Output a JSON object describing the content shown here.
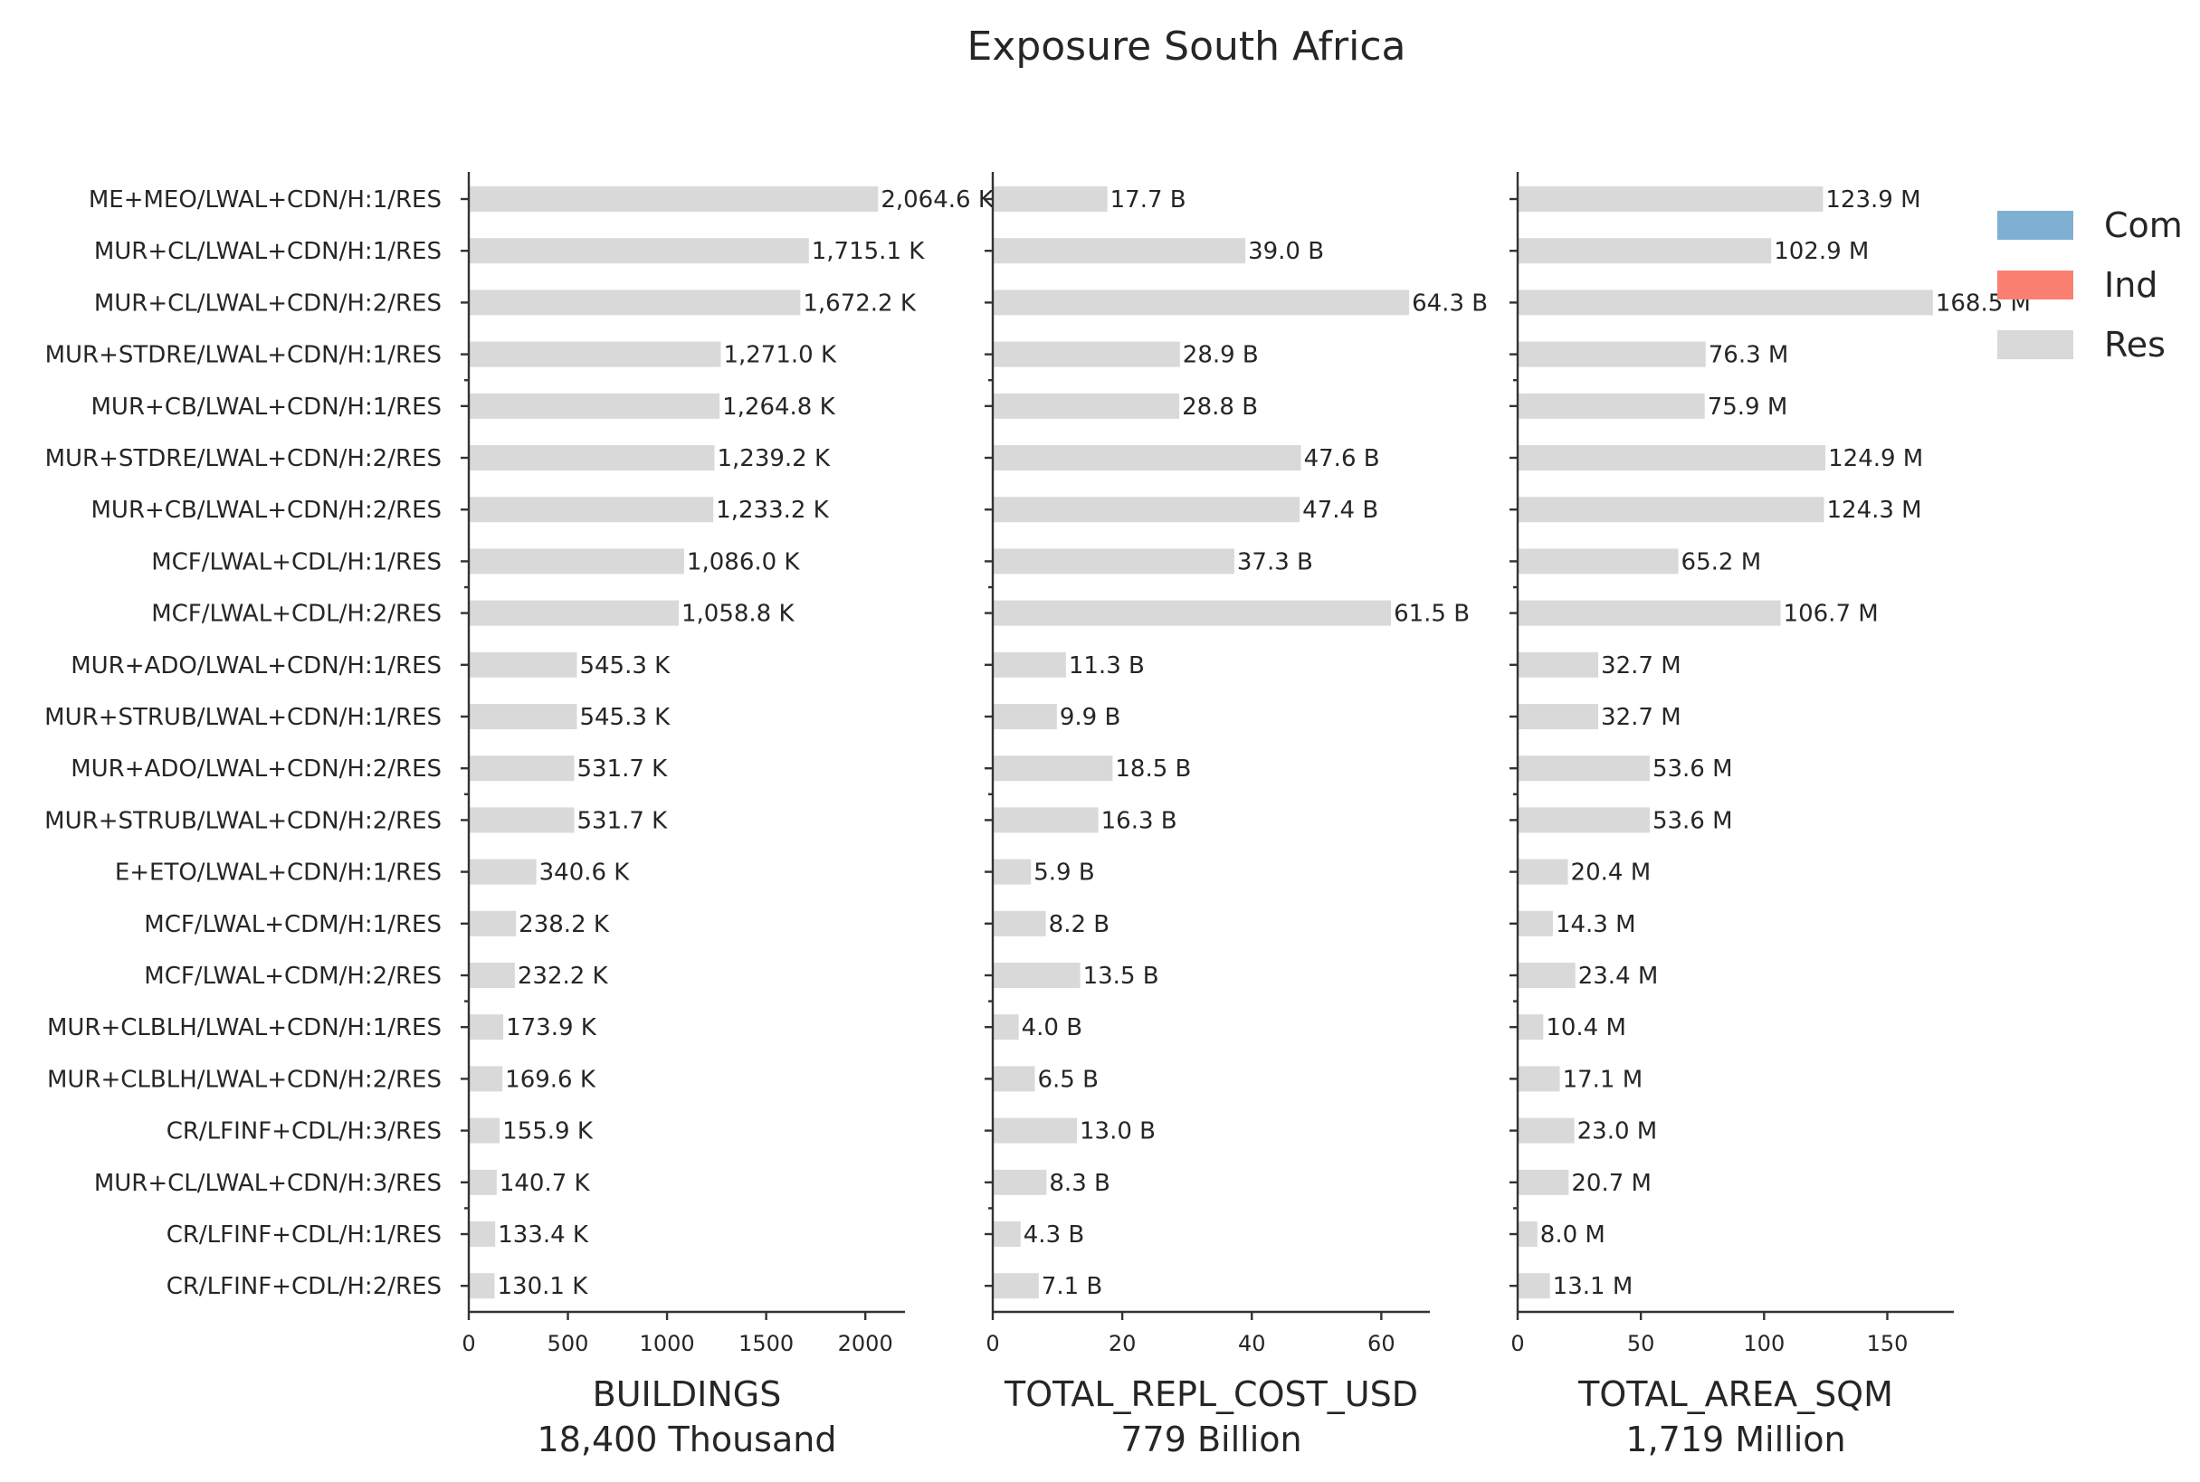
{
  "chart_data": {
    "type": "bar",
    "orientation": "horizontal",
    "title": "Exposure South Africa",
    "legend": {
      "placement": "top-right",
      "entries": [
        {
          "name": "Com",
          "color": "#7fb0d3"
        },
        {
          "name": "Ind",
          "color": "#fb8072"
        },
        {
          "name": "Res",
          "color": "#d9d9d9"
        }
      ]
    },
    "bar_color": "#d9d9d9",
    "categories": [
      "ME+MEO/LWAL+CDN/H:1/RES",
      "MUR+CL/LWAL+CDN/H:1/RES",
      "MUR+CL/LWAL+CDN/H:2/RES",
      "MUR+STDRE/LWAL+CDN/H:1/RES",
      "MUR+CB/LWAL+CDN/H:1/RES",
      "MUR+STDRE/LWAL+CDN/H:2/RES",
      "MUR+CB/LWAL+CDN/H:2/RES",
      "MCF/LWAL+CDL/H:1/RES",
      "MCF/LWAL+CDL/H:2/RES",
      "MUR+ADO/LWAL+CDN/H:1/RES",
      "MUR+STRUB/LWAL+CDN/H:1/RES",
      "MUR+ADO/LWAL+CDN/H:2/RES",
      "MUR+STRUB/LWAL+CDN/H:2/RES",
      "E+ETO/LWAL+CDN/H:1/RES",
      "MCF/LWAL+CDM/H:1/RES",
      "MCF/LWAL+CDM/H:2/RES",
      "MUR+CLBLH/LWAL+CDN/H:1/RES",
      "MUR+CLBLH/LWAL+CDN/H:2/RES",
      "CR/LFINF+CDL/H:3/RES",
      "MUR+CL/LWAL+CDN/H:3/RES",
      "CR/LFINF+CDL/H:1/RES",
      "CR/LFINF+CDL/H:2/RES"
    ],
    "panels": [
      {
        "metric": "BUILDINGS",
        "total": "18,400 Thousand",
        "xlim": [
          0,
          2200
        ],
        "xticks": [
          0,
          500,
          1000,
          1500,
          2000
        ],
        "values": [
          2064.6,
          1715.1,
          1672.2,
          1271.0,
          1264.8,
          1239.2,
          1233.2,
          1086.0,
          1058.8,
          545.3,
          545.3,
          531.7,
          531.7,
          340.6,
          238.2,
          232.2,
          173.9,
          169.6,
          155.9,
          140.7,
          133.4,
          130.1
        ],
        "labels": [
          "2,064.6 K",
          "1,715.1 K",
          "1,672.2 K",
          "1,271.0 K",
          "1,264.8 K",
          "1,239.2 K",
          "1,233.2 K",
          "1,086.0 K",
          "1,058.8 K",
          "545.3 K",
          "545.3 K",
          "531.7 K",
          "531.7 K",
          "340.6 K",
          "238.2 K",
          "232.2 K",
          "173.9 K",
          "169.6 K",
          "155.9 K",
          "140.7 K",
          "133.4 K",
          "130.1 K"
        ]
      },
      {
        "metric": "TOTAL_REPL_COST_USD",
        "total": "779 Billion",
        "xlim": [
          0,
          67.5
        ],
        "xticks": [
          0,
          20,
          40,
          60
        ],
        "values": [
          17.7,
          39.0,
          64.3,
          28.9,
          28.8,
          47.6,
          47.4,
          37.3,
          61.5,
          11.3,
          9.9,
          18.5,
          16.3,
          5.9,
          8.2,
          13.5,
          4.0,
          6.5,
          13.0,
          8.3,
          4.3,
          7.1
        ],
        "labels": [
          "17.7 B",
          "39.0 B",
          "64.3 B",
          "28.9 B",
          "28.8 B",
          "47.6 B",
          "47.4 B",
          "37.3 B",
          "61.5 B",
          "11.3 B",
          "9.9 B",
          "18.5 B",
          "16.3 B",
          "5.9 B",
          "8.2 B",
          "13.5 B",
          "4.0 B",
          "6.5 B",
          "13.0 B",
          "8.3 B",
          "4.3 B",
          "7.1 B"
        ]
      },
      {
        "metric": "TOTAL_AREA_SQM",
        "total": "1,719 Million",
        "xlim": [
          0,
          177
        ],
        "xticks": [
          0,
          50,
          100,
          150
        ],
        "values": [
          123.9,
          102.9,
          168.5,
          76.3,
          75.9,
          124.9,
          124.3,
          65.2,
          106.7,
          32.7,
          32.7,
          53.6,
          53.6,
          20.4,
          14.3,
          23.4,
          10.4,
          17.1,
          23.0,
          20.7,
          8.0,
          13.1
        ],
        "labels": [
          "123.9 M",
          "102.9 M",
          "168.5 M",
          "76.3 M",
          "75.9 M",
          "124.9 M",
          "124.3 M",
          "65.2 M",
          "106.7 M",
          "32.7 M",
          "32.7 M",
          "53.6 M",
          "53.6 M",
          "20.4 M",
          "14.3 M",
          "23.4 M",
          "10.4 M",
          "17.1 M",
          "23.0 M",
          "20.7 M",
          "8.0 M",
          "13.1 M"
        ]
      }
    ]
  }
}
